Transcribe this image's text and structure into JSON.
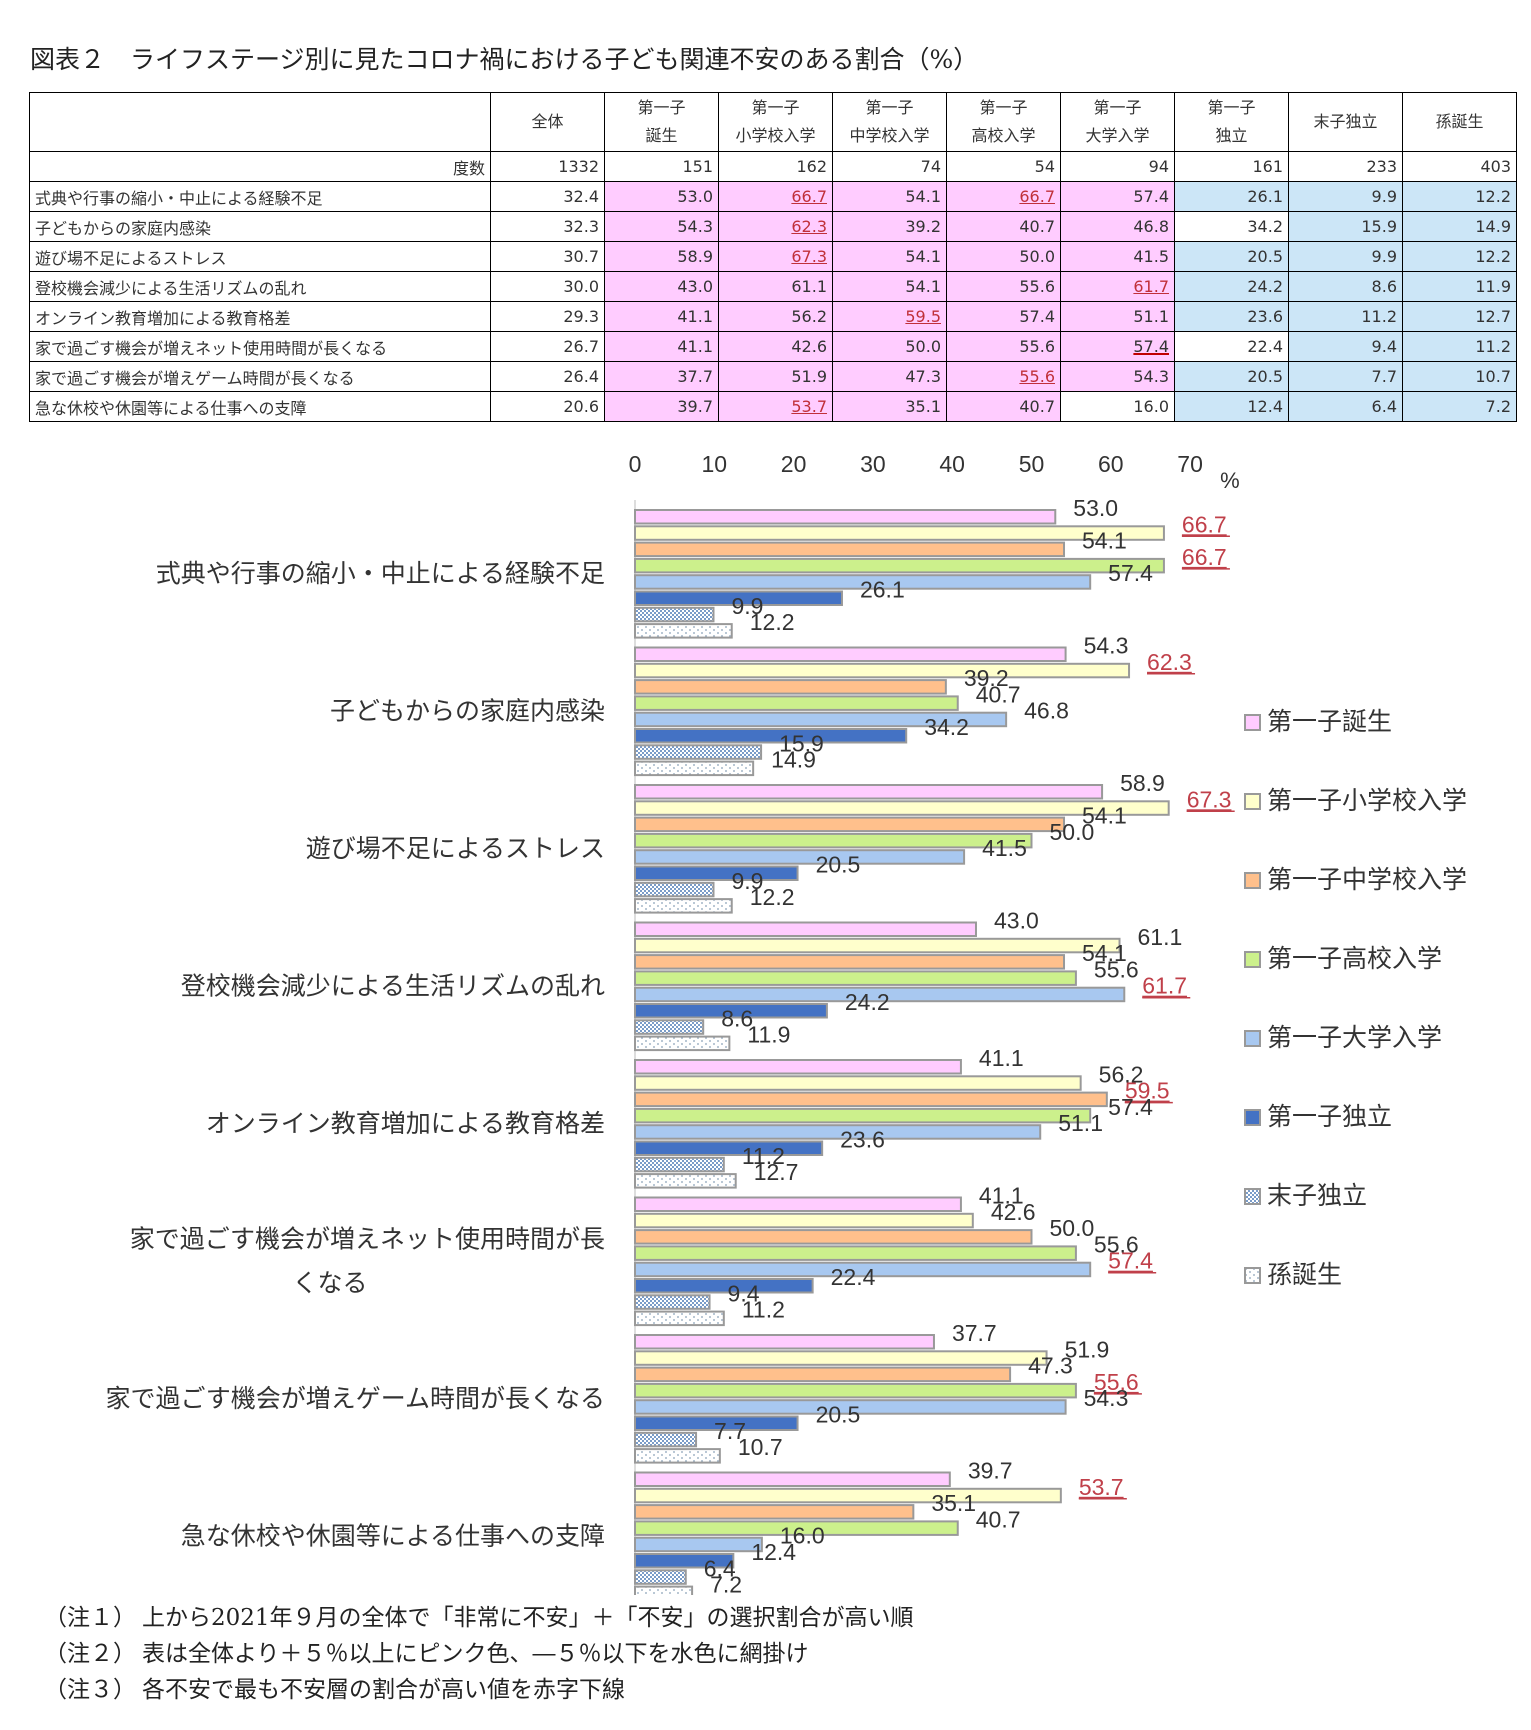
{
  "title": "図表２　ライフステージ別に見たコロナ禍における子ども関連不安のある割合（%）",
  "table": {
    "header_line1": [
      "全体",
      "第一子",
      "第一子",
      "第一子",
      "第一子",
      "第一子",
      "第一子",
      "末子独立",
      "孫誕生"
    ],
    "header_line2": [
      "",
      "誕生",
      "小学校入学",
      "中学校入学",
      "高校入学",
      "大学入学",
      "独立",
      "",
      ""
    ],
    "n_label": "度数",
    "n_values": [
      "1332",
      "151",
      "162",
      "74",
      "54",
      "94",
      "161",
      "233",
      "403"
    ],
    "rows": [
      {
        "label": "式典や行事の縮小・中止による経験不足",
        "values": [
          "32.4",
          "53.0",
          "66.7",
          "54.1",
          "66.7",
          "57.4",
          "26.1",
          "9.9",
          "12.2"
        ],
        "shade": [
          "",
          "p",
          "p",
          "p",
          "p",
          "p",
          "b",
          "b",
          "b"
        ],
        "red": [
          2,
          4
        ]
      },
      {
        "label": "子どもからの家庭内感染",
        "values": [
          "32.3",
          "54.3",
          "62.3",
          "39.2",
          "40.7",
          "46.8",
          "34.2",
          "15.9",
          "14.9"
        ],
        "shade": [
          "",
          "p",
          "p",
          "p",
          "p",
          "p",
          "",
          "b",
          "b"
        ],
        "red": [
          2
        ]
      },
      {
        "label": "遊び場不足によるストレス",
        "values": [
          "30.7",
          "58.9",
          "67.3",
          "54.1",
          "50.0",
          "41.5",
          "20.5",
          "9.9",
          "12.2"
        ],
        "shade": [
          "",
          "p",
          "p",
          "p",
          "p",
          "p",
          "b",
          "b",
          "b"
        ],
        "red": [
          2
        ]
      },
      {
        "label": "登校機会減少による生活リズムの乱れ",
        "values": [
          "30.0",
          "43.0",
          "61.1",
          "54.1",
          "55.6",
          "61.7",
          "24.2",
          "8.6",
          "11.9"
        ],
        "shade": [
          "",
          "p",
          "p",
          "p",
          "p",
          "p",
          "b",
          "b",
          "b"
        ],
        "red": [
          5
        ]
      },
      {
        "label": "オンライン教育増加による教育格差",
        "values": [
          "29.3",
          "41.1",
          "56.2",
          "59.5",
          "57.4",
          "51.1",
          "23.6",
          "11.2",
          "12.7"
        ],
        "shade": [
          "",
          "p",
          "p",
          "p",
          "p",
          "p",
          "b",
          "b",
          "b"
        ],
        "red": [
          3
        ]
      },
      {
        "label": "家で過ごす機会が増えネット使用時間が長くなる",
        "values": [
          "26.7",
          "41.1",
          "42.6",
          "50.0",
          "55.6",
          "57.4",
          "22.4",
          "9.4",
          "11.2"
        ],
        "shade": [
          "",
          "p",
          "p",
          "p",
          "p",
          "p",
          "",
          "b",
          "b"
        ],
        "red": [
          5
        ]
      },
      {
        "label": "家で過ごす機会が増えゲーム時間が長くなる",
        "values": [
          "26.4",
          "37.7",
          "51.9",
          "47.3",
          "55.6",
          "54.3",
          "20.5",
          "7.7",
          "10.7"
        ],
        "shade": [
          "",
          "p",
          "p",
          "p",
          "p",
          "p",
          "b",
          "b",
          "b"
        ],
        "red": [
          4
        ]
      },
      {
        "label": "急な休校や休園等による仕事への支障",
        "values": [
          "20.6",
          "39.7",
          "53.7",
          "35.1",
          "40.7",
          "16.0",
          "12.4",
          "6.4",
          "7.2"
        ],
        "shade": [
          "",
          "p",
          "p",
          "p",
          "p",
          "",
          "b",
          "b",
          "b"
        ],
        "red": [
          2
        ]
      }
    ]
  },
  "chart_data": {
    "type": "bar",
    "orientation": "horizontal",
    "categories": [
      "式典や行事の縮小・中止による経験不足",
      "子どもからの家庭内感染",
      "遊び場不足によるストレス",
      "登校機会減少による生活リズムの乱れ",
      "オンライン教育増加による教育格差",
      "家で過ごす機会が増えネット使用時間が長くなる",
      "家で過ごす機会が増えゲーム時間が長くなる",
      "急な休校や休園等による仕事への支障"
    ],
    "series": [
      {
        "name": "第一子誕生",
        "values": [
          53.0,
          54.3,
          58.9,
          43.0,
          41.1,
          41.1,
          37.7,
          39.7
        ],
        "color": "#ffccff"
      },
      {
        "name": "第一子小学校入学",
        "values": [
          66.7,
          62.3,
          67.3,
          61.1,
          56.2,
          42.6,
          51.9,
          53.7
        ],
        "color": "#ffffcc"
      },
      {
        "name": "第一子中学校入学",
        "values": [
          54.1,
          39.2,
          54.1,
          54.1,
          59.5,
          50.0,
          47.3,
          35.1
        ],
        "color": "#ffc08c"
      },
      {
        "name": "第一子高校入学",
        "values": [
          66.7,
          40.7,
          50.0,
          55.6,
          57.4,
          55.6,
          55.6,
          40.7
        ],
        "color": "#ccf08c"
      },
      {
        "name": "第一子大学入学",
        "values": [
          57.4,
          46.8,
          41.5,
          61.7,
          51.1,
          57.4,
          54.3,
          16.0
        ],
        "color": "#a8c8f0"
      },
      {
        "name": "第一子独立",
        "values": [
          26.1,
          34.2,
          20.5,
          24.2,
          23.6,
          22.4,
          20.5,
          12.4
        ],
        "color": "#4472c4"
      },
      {
        "name": "末子独立",
        "values": [
          9.9,
          15.9,
          9.9,
          8.6,
          11.2,
          9.4,
          7.7,
          6.4
        ],
        "color": "#b8cce4"
      },
      {
        "name": "孫誕生",
        "values": [
          12.2,
          14.9,
          12.2,
          11.9,
          12.7,
          11.2,
          10.7,
          7.2
        ],
        "color": "#ffffff"
      }
    ],
    "highlight": [
      [
        1,
        3
      ],
      [
        1
      ],
      [
        1
      ],
      [
        4
      ],
      [
        2
      ],
      [
        4
      ],
      [
        3
      ],
      [
        1
      ]
    ],
    "highlight_color": "#c0404a",
    "xlim": [
      0,
      70
    ],
    "xticks": [
      "0",
      "10",
      "20",
      "30",
      "40",
      "50",
      "60",
      "70"
    ],
    "xunit": "%",
    "legend_position": "right"
  },
  "notes": [
    {
      "key": "（注１）",
      "text": "上から2021年９月の全体で「非常に不安」＋「不安」の選択割合が高い順"
    },
    {
      "key": "（注２）",
      "text": "表は全体より＋５％以上にピンク色、―５％以下を水色に網掛け"
    },
    {
      "key": "（注３）",
      "text": "各不安で最も不安層の割合が高い値を赤字下線"
    }
  ]
}
